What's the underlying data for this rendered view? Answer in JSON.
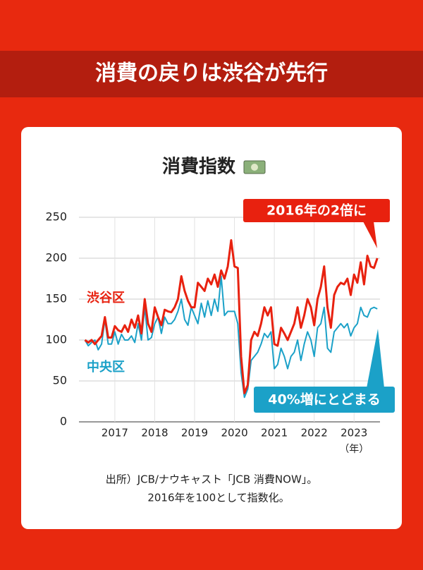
{
  "header": {
    "title": "消費の戻りは渋谷が先行"
  },
  "chart_data": {
    "type": "line",
    "title": "消費指数",
    "x": [
      2016.25,
      2016.333,
      2016.417,
      2016.5,
      2016.583,
      2016.667,
      2016.75,
      2016.833,
      2016.917,
      2017,
      2017.083,
      2017.167,
      2017.25,
      2017.333,
      2017.417,
      2017.5,
      2017.583,
      2017.667,
      2017.75,
      2017.833,
      2017.917,
      2018,
      2018.083,
      2018.167,
      2018.25,
      2018.333,
      2018.417,
      2018.5,
      2018.583,
      2018.667,
      2018.75,
      2018.833,
      2018.917,
      2019,
      2019.083,
      2019.167,
      2019.25,
      2019.333,
      2019.417,
      2019.5,
      2019.583,
      2019.667,
      2019.75,
      2019.833,
      2019.917,
      2020,
      2020.083,
      2020.167,
      2020.25,
      2020.333,
      2020.417,
      2020.5,
      2020.583,
      2020.667,
      2020.75,
      2020.833,
      2020.917,
      2021,
      2021.083,
      2021.167,
      2021.25,
      2021.333,
      2021.417,
      2021.5,
      2021.583,
      2021.667,
      2021.75,
      2021.833,
      2021.917,
      2022,
      2022.083,
      2022.167,
      2022.25,
      2022.333,
      2022.417,
      2022.5,
      2022.583,
      2022.667,
      2022.75,
      2022.833,
      2022.917,
      2023,
      2023.083,
      2023.167,
      2023.25,
      2023.333,
      2023.417,
      2023.5,
      2023.583
    ],
    "series": [
      {
        "name": "渋谷区",
        "color": "#e8210f",
        "values": [
          100,
          97,
          100,
          95,
          100,
          105,
          128,
          103,
          103,
          117,
          112,
          110,
          118,
          110,
          125,
          115,
          130,
          108,
          150,
          120,
          110,
          140,
          128,
          118,
          137,
          135,
          134,
          140,
          150,
          178,
          160,
          148,
          140,
          140,
          170,
          165,
          160,
          175,
          168,
          180,
          165,
          185,
          175,
          190,
          222,
          190,
          188,
          80,
          35,
          45,
          100,
          110,
          105,
          120,
          140,
          130,
          140,
          95,
          93,
          115,
          108,
          100,
          110,
          120,
          140,
          115,
          130,
          150,
          140,
          118,
          150,
          165,
          190,
          140,
          115,
          155,
          165,
          170,
          168,
          175,
          155,
          180,
          170,
          195,
          168,
          203,
          190,
          188,
          200
        ]
      },
      {
        "name": "中央区",
        "color": "#1ba1c8",
        "values": [
          100,
          93,
          97,
          100,
          88,
          95,
          125,
          95,
          95,
          110,
          95,
          107,
          100,
          100,
          105,
          97,
          120,
          100,
          140,
          100,
          103,
          120,
          128,
          108,
          128,
          120,
          120,
          125,
          135,
          150,
          125,
          118,
          140,
          130,
          120,
          145,
          128,
          148,
          130,
          150,
          135,
          178,
          130,
          135,
          135,
          135,
          120,
          60,
          30,
          40,
          75,
          80,
          85,
          95,
          108,
          103,
          110,
          65,
          70,
          90,
          80,
          65,
          80,
          85,
          100,
          75,
          95,
          110,
          100,
          80,
          115,
          120,
          140,
          90,
          85,
          110,
          115,
          120,
          115,
          120,
          105,
          115,
          120,
          140,
          130,
          128,
          138,
          140,
          138
        ]
      }
    ],
    "xlim": [
      2016.1,
      2023.65
    ],
    "xticks": [
      2017,
      2018,
      2019,
      2020,
      2021,
      2022,
      2023
    ],
    "x_unit": "（年）",
    "ylim": [
      0,
      250
    ],
    "yticks": [
      0,
      50,
      100,
      150,
      200,
      250
    ],
    "grid": true,
    "annotations": [
      "2016年の2倍に",
      "40%増にとどまる"
    ],
    "source": [
      "出所）JCB/ナウキャスト「JCB 消費NOW」。",
      "2016年を100として指数化。"
    ]
  }
}
